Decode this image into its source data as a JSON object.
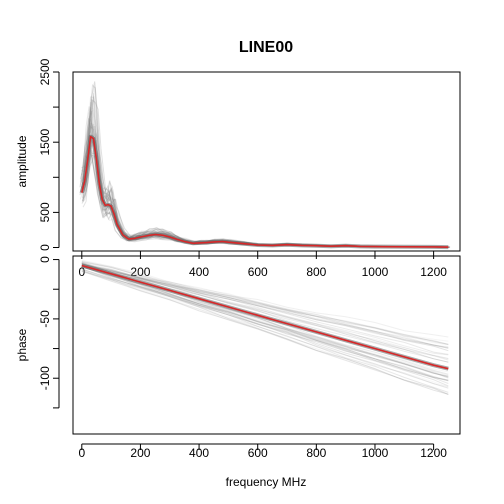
{
  "chart_data": {
    "type": "line",
    "title": "LINE00",
    "xlabel": "frequency MHz",
    "xlim": [
      -30,
      1290
    ],
    "xticks": [
      0,
      200,
      400,
      600,
      800,
      1000,
      1200
    ],
    "panels": [
      {
        "name": "amplitude-panel",
        "ylabel": "amplitude",
        "ylim": [
          -50,
          2500
        ],
        "yticks": [
          0,
          500,
          1500,
          2500
        ],
        "yminor": [
          1000,
          2000
        ],
        "mean_series": {
          "color": "#d62728",
          "x": [
            0,
            10,
            20,
            30,
            40,
            50,
            60,
            70,
            80,
            90,
            100,
            110,
            120,
            140,
            160,
            180,
            200,
            225,
            250,
            275,
            300,
            325,
            350,
            380,
            400,
            425,
            450,
            480,
            500,
            550,
            600,
            650,
            700,
            750,
            800,
            850,
            900,
            950,
            1000,
            1100,
            1200,
            1250
          ],
          "y": [
            780,
            950,
            1250,
            1580,
            1550,
            1250,
            900,
            680,
            600,
            610,
            590,
            480,
            330,
            180,
            120,
            130,
            150,
            170,
            185,
            175,
            150,
            115,
            85,
            60,
            65,
            70,
            80,
            85,
            75,
            55,
            35,
            30,
            40,
            30,
            25,
            18,
            25,
            15,
            12,
            10,
            8,
            5
          ]
        },
        "trace_color": "#888888",
        "trace_count": 40
      },
      {
        "name": "phase-panel",
        "ylabel": "phase",
        "ylim": [
          -147,
          3
        ],
        "yticks": [
          0,
          -50,
          -100
        ],
        "yminor": [
          -25,
          -75,
          -125
        ],
        "mean_series": {
          "color": "#d62728",
          "x": [
            0,
            100,
            200,
            300,
            400,
            500,
            600,
            700,
            800,
            900,
            1000,
            1100,
            1200,
            1250
          ],
          "y": [
            -5,
            -12,
            -19,
            -26,
            -33,
            -40,
            -47,
            -54,
            -61,
            -68,
            -75,
            -82,
            -89,
            -92
          ]
        },
        "trace_color": "#888888",
        "trace_count": 40
      }
    ]
  }
}
